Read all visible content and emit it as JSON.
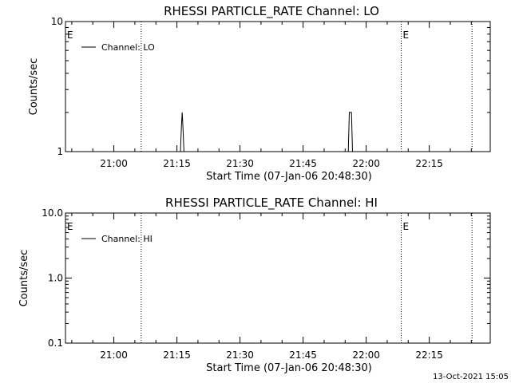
{
  "chart_data": [
    {
      "type": "line",
      "title": "RHESSI PARTICLE_RATE Channel: LO",
      "xlabel": "Start Time (07-Jan-06 20:48:30)",
      "ylabel": "Counts/sec",
      "y_scale": "log",
      "ylim": [
        1,
        10
      ],
      "y_ticks": [
        1,
        10
      ],
      "y_tick_labels": [
        "1",
        "10"
      ],
      "xlim": [
        "20:48:30",
        "22:29:30"
      ],
      "x_ticks": [
        "21:00",
        "21:15",
        "21:30",
        "21:45",
        "22:00",
        "22:15"
      ],
      "grid": false,
      "legend": "top-left",
      "series": [
        {
          "name": "Channel: LO",
          "x": [
            "21:15:50",
            "21:16:05",
            "21:16:15",
            "21:16:25",
            "21:16:40",
            "21:55:45",
            "21:56:00",
            "21:56:15",
            "21:56:30",
            "21:56:45"
          ],
          "y": [
            1,
            1.6,
            2,
            1.6,
            1,
            1,
            2,
            2,
            2,
            1
          ]
        }
      ],
      "event_markers": [
        {
          "x": "20:48:30",
          "label": "E"
        },
        {
          "x": "21:06:30",
          "label": ""
        },
        {
          "x": "22:08:20",
          "label": "E"
        },
        {
          "x": "22:25:10",
          "label": ""
        }
      ]
    },
    {
      "type": "line",
      "title": "RHESSI PARTICLE_RATE Channel: HI",
      "xlabel": "Start Time (07-Jan-06 20:48:30)",
      "ylabel": "Counts/sec",
      "y_scale": "log",
      "ylim": [
        0.1,
        10
      ],
      "y_ticks": [
        0.1,
        1,
        10
      ],
      "y_tick_labels": [
        "0.1",
        "1.0",
        "10.0"
      ],
      "xlim": [
        "20:48:30",
        "22:29:30"
      ],
      "x_ticks": [
        "21:00",
        "21:15",
        "21:30",
        "21:45",
        "22:00",
        "22:15"
      ],
      "grid": false,
      "legend": "top-left",
      "series": [
        {
          "name": "Channel: HI",
          "x": [],
          "y": []
        }
      ],
      "event_markers": [
        {
          "x": "20:48:30",
          "label": "E"
        },
        {
          "x": "21:06:30",
          "label": ""
        },
        {
          "x": "22:08:20",
          "label": "E"
        },
        {
          "x": "22:25:10",
          "label": ""
        }
      ]
    }
  ],
  "footer": {
    "timestamp": "13-Oct-2021 15:05"
  }
}
